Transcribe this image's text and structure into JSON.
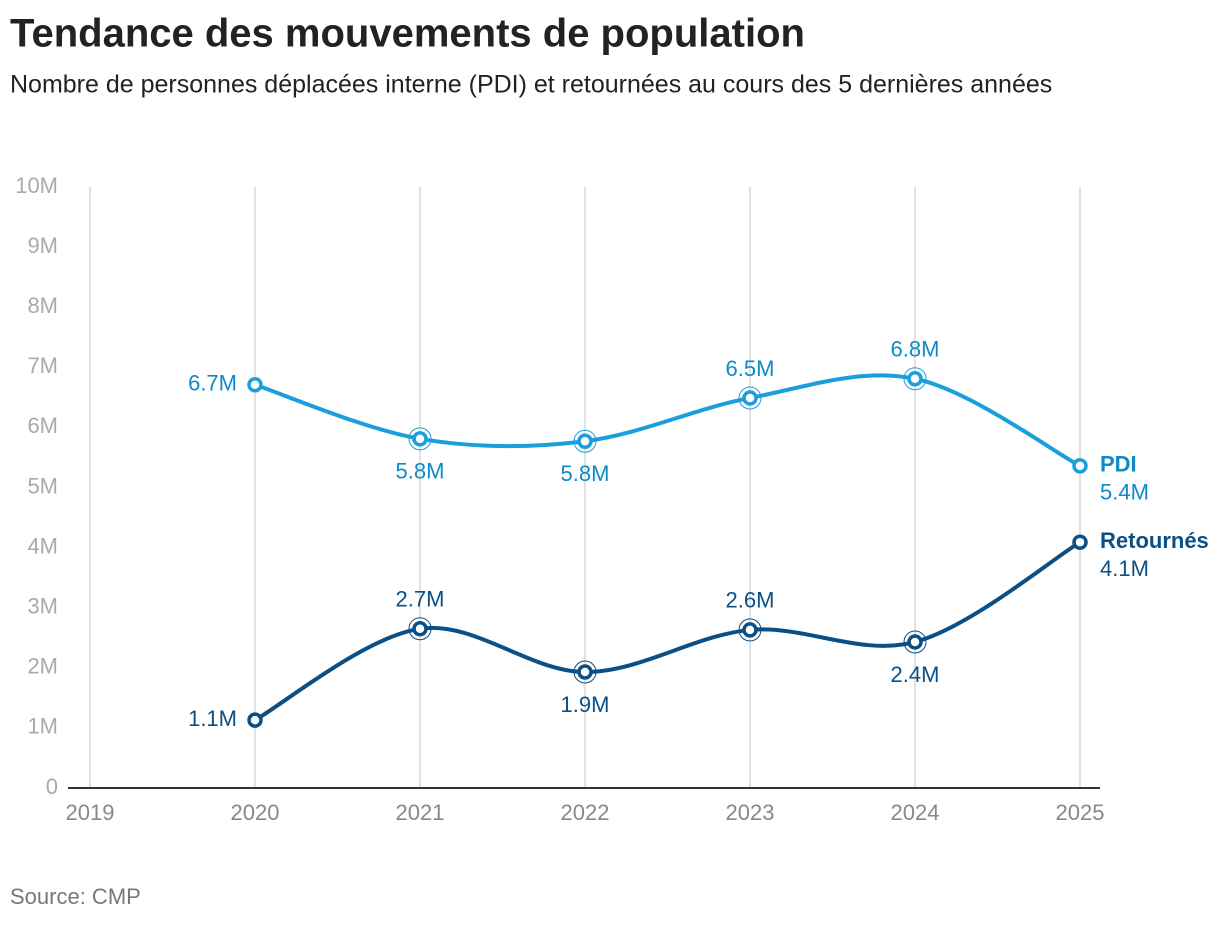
{
  "chart_data": {
    "type": "line",
    "title": "Tendance des mouvements de population",
    "subtitle": "Nombre de personnes déplacées interne (PDI) et retournées au cours des 5 dernières années",
    "source": "Source: CMP",
    "x": [
      2020,
      2021,
      2022,
      2023,
      2024,
      2025
    ],
    "series": [
      {
        "name": "PDI",
        "color": "#1a9fdc",
        "values": [
          6710000,
          5810000,
          5770000,
          6490000,
          6810000,
          5360000
        ],
        "value_labels": [
          "6.7M",
          "5.8M",
          "5.8M",
          "6.5M",
          "6.8M",
          "5.4M"
        ]
      },
      {
        "name": "Retournés",
        "color": "#0b4f85",
        "values": [
          1130000,
          2650000,
          1930000,
          2630000,
          2430000,
          4090000
        ],
        "value_labels": [
          "1.1M",
          "2.7M",
          "1.9M",
          "2.6M",
          "2.4M",
          "4.1M"
        ]
      }
    ],
    "xlim": [
      2019,
      2025
    ],
    "xticks": [
      2019,
      2020,
      2021,
      2022,
      2023,
      2024,
      2025
    ],
    "ylim": [
      0,
      10000000
    ],
    "yticks": [
      0,
      {
        "value": 1000000,
        "label": "1M"
      },
      {
        "value": 2000000,
        "label": "2M"
      },
      {
        "value": 3000000,
        "label": "3M"
      },
      {
        "value": 4000000,
        "label": "4M"
      },
      {
        "value": 5000000,
        "label": "5M"
      },
      {
        "value": 6000000,
        "label": "6M"
      },
      {
        "value": 7000000,
        "label": "7M"
      },
      {
        "value": 8000000,
        "label": "8M"
      },
      {
        "value": 9000000,
        "label": "9M"
      },
      {
        "value": 10000000,
        "label": "10M"
      }
    ],
    "grid": true
  }
}
